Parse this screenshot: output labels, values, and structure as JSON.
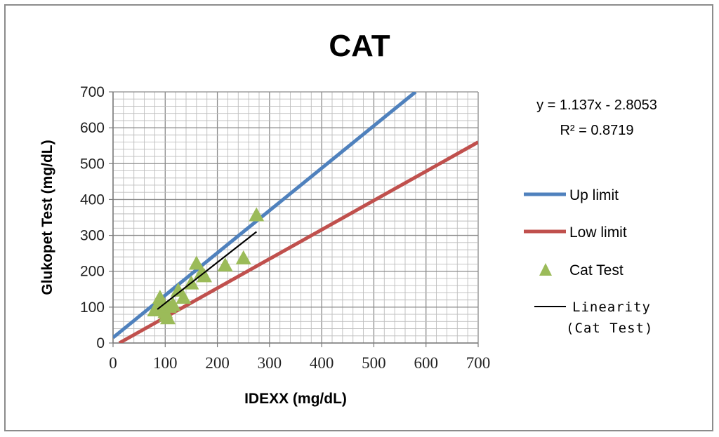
{
  "chart_data": {
    "type": "scatter",
    "title": "CAT",
    "xlabel": "IDEXX (mg/dL)",
    "ylabel": "Glukopet Test (mg/dL)",
    "xlim": [
      0,
      700
    ],
    "ylim": [
      0,
      700
    ],
    "xticks": [
      "0",
      "100",
      "200",
      "300",
      "400",
      "500",
      "600",
      "700"
    ],
    "yticks": [
      "0",
      "100",
      "200",
      "300",
      "400",
      "500",
      "600",
      "700"
    ],
    "grid": true,
    "legend_position": "right",
    "equation": "y = 1.137x - 2.8053",
    "r_squared": "R² = 0.8719",
    "series": [
      {
        "name": "Up limit",
        "kind": "line",
        "color": "#4f81bd",
        "points": [
          [
            0,
            15
          ],
          [
            580,
            700
          ]
        ]
      },
      {
        "name": "Low limit",
        "kind": "line",
        "color": "#c0504d",
        "points": [
          [
            12,
            0
          ],
          [
            700,
            560
          ]
        ]
      },
      {
        "name": "Cat Test",
        "kind": "scatter",
        "marker": "triangle",
        "color": "#9bbb59",
        "points": [
          [
            80,
            90
          ],
          [
            85,
            95
          ],
          [
            90,
            125
          ],
          [
            95,
            110
          ],
          [
            100,
            85
          ],
          [
            102,
            75
          ],
          [
            105,
            68
          ],
          [
            108,
            100
          ],
          [
            115,
            105
          ],
          [
            125,
            145
          ],
          [
            135,
            125
          ],
          [
            150,
            165
          ],
          [
            160,
            220
          ],
          [
            170,
            195
          ],
          [
            175,
            185
          ],
          [
            215,
            215
          ],
          [
            250,
            235
          ],
          [
            275,
            355
          ]
        ]
      },
      {
        "name": "Linearity",
        "name_suffix": "(Cat Test)",
        "kind": "line",
        "color": "#000000",
        "points": [
          [
            85,
            94
          ],
          [
            275,
            310
          ]
        ]
      }
    ]
  }
}
